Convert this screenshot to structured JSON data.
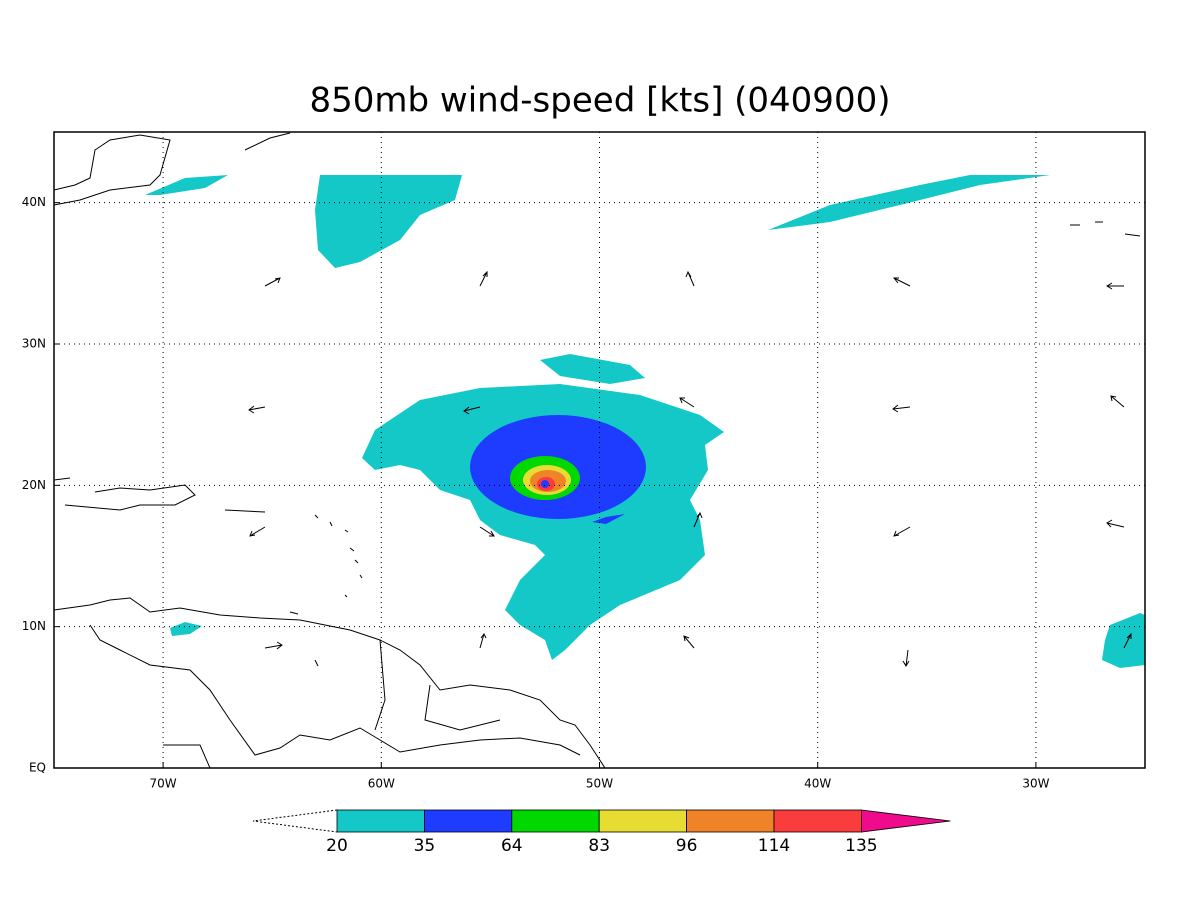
{
  "map": {
    "title": "850mb wind-speed [kts] (040900)",
    "xlim": [
      -75,
      -25
    ],
    "ylim": [
      0,
      45
    ],
    "xticks": [
      {
        "value": -70,
        "label": "70W"
      },
      {
        "value": -60,
        "label": "60W"
      },
      {
        "value": -50,
        "label": "50W"
      },
      {
        "value": -40,
        "label": "40W"
      },
      {
        "value": -30,
        "label": "30W"
      }
    ],
    "yticks": [
      {
        "value": 0,
        "label": "EQ"
      },
      {
        "value": 10,
        "label": "10N"
      },
      {
        "value": 20,
        "label": "20N"
      },
      {
        "value": 30,
        "label": "30N"
      },
      {
        "value": 40,
        "label": "40N"
      }
    ],
    "grid": true
  },
  "colorbar": {
    "levels": [
      20,
      35,
      64,
      83,
      96,
      114,
      135
    ],
    "colors": [
      "#14c8c8",
      "#1e3cff",
      "#00d800",
      "#e6dc32",
      "#f08228",
      "#fa3c3c",
      "#f00a8c"
    ]
  }
}
